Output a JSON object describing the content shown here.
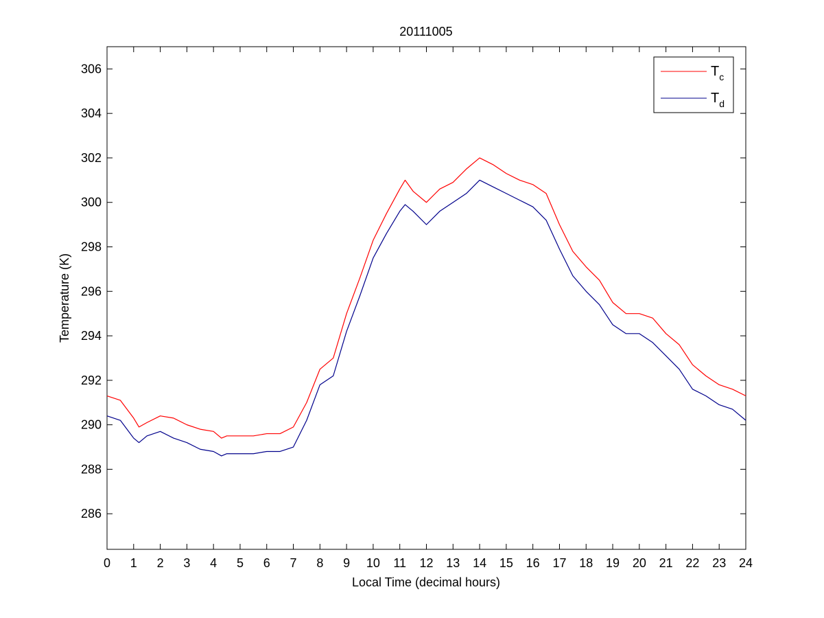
{
  "chart_data": {
    "type": "line",
    "title": "20111005",
    "xlabel": "Local Time (decimal hours)",
    "ylabel": "Temperature (K)",
    "xlim": [
      0,
      24
    ],
    "ylim": [
      284.4,
      307
    ],
    "xticks": [
      0,
      1,
      2,
      3,
      4,
      5,
      6,
      7,
      8,
      9,
      10,
      11,
      12,
      13,
      14,
      15,
      16,
      17,
      18,
      19,
      20,
      21,
      22,
      23,
      24
    ],
    "yticks": [
      286,
      288,
      290,
      292,
      294,
      296,
      298,
      300,
      302,
      304,
      306
    ],
    "grid": false,
    "legend_position": "top-right",
    "series": [
      {
        "name": "Tc",
        "legend_main": "T",
        "legend_sub": "c",
        "color": "#ff0000",
        "x": [
          0,
          0.5,
          1,
          1.2,
          1.5,
          2,
          2.5,
          3,
          3.5,
          4,
          4.3,
          4.5,
          5,
          5.5,
          6,
          6.5,
          7,
          7.5,
          8,
          8.5,
          9,
          9.5,
          10,
          10.5,
          11,
          11.2,
          11.5,
          12,
          12.5,
          13,
          13.5,
          14,
          14.5,
          15,
          15.5,
          16,
          16.5,
          17,
          17.5,
          18,
          18.5,
          19,
          19.5,
          20,
          20.5,
          21,
          21.5,
          22,
          22.5,
          23,
          23.5,
          24
        ],
        "y": [
          291.3,
          291.1,
          290.3,
          289.9,
          290.1,
          290.4,
          290.3,
          290.0,
          289.8,
          289.7,
          289.4,
          289.5,
          289.5,
          289.5,
          289.6,
          289.6,
          289.9,
          291.0,
          292.5,
          293.0,
          295.0,
          296.6,
          298.3,
          299.5,
          300.6,
          301.0,
          300.5,
          300.0,
          300.6,
          300.9,
          301.5,
          302.0,
          301.7,
          301.3,
          301.0,
          300.8,
          300.4,
          299.0,
          297.8,
          297.1,
          296.5,
          295.5,
          295.0,
          295.0,
          294.8,
          294.1,
          293.6,
          292.7,
          292.2,
          291.8,
          291.6,
          291.3
        ]
      },
      {
        "name": "Td",
        "legend_main": "T",
        "legend_sub": "d",
        "color": "#00008b",
        "x": [
          0,
          0.5,
          1,
          1.2,
          1.5,
          2,
          2.5,
          3,
          3.5,
          4,
          4.3,
          4.5,
          5,
          5.5,
          6,
          6.5,
          7,
          7.5,
          8,
          8.5,
          9,
          9.5,
          10,
          10.5,
          11,
          11.2,
          11.5,
          12,
          12.5,
          13,
          13.5,
          14,
          14.5,
          15,
          15.5,
          16,
          16.5,
          17,
          17.5,
          18,
          18.5,
          19,
          19.5,
          20,
          20.5,
          21,
          21.5,
          22,
          22.5,
          23,
          23.5,
          24
        ],
        "y": [
          290.4,
          290.2,
          289.4,
          289.2,
          289.5,
          289.7,
          289.4,
          289.2,
          288.9,
          288.8,
          288.6,
          288.7,
          288.7,
          288.7,
          288.8,
          288.8,
          289.0,
          290.2,
          291.8,
          292.2,
          294.2,
          295.8,
          297.5,
          298.6,
          299.6,
          299.9,
          299.6,
          299.0,
          299.6,
          300.0,
          300.4,
          301.0,
          300.7,
          300.4,
          300.1,
          299.8,
          299.2,
          297.9,
          296.7,
          296.0,
          295.4,
          294.5,
          294.1,
          294.1,
          293.7,
          293.1,
          292.5,
          291.6,
          291.3,
          290.9,
          290.7,
          290.2
        ]
      }
    ]
  }
}
